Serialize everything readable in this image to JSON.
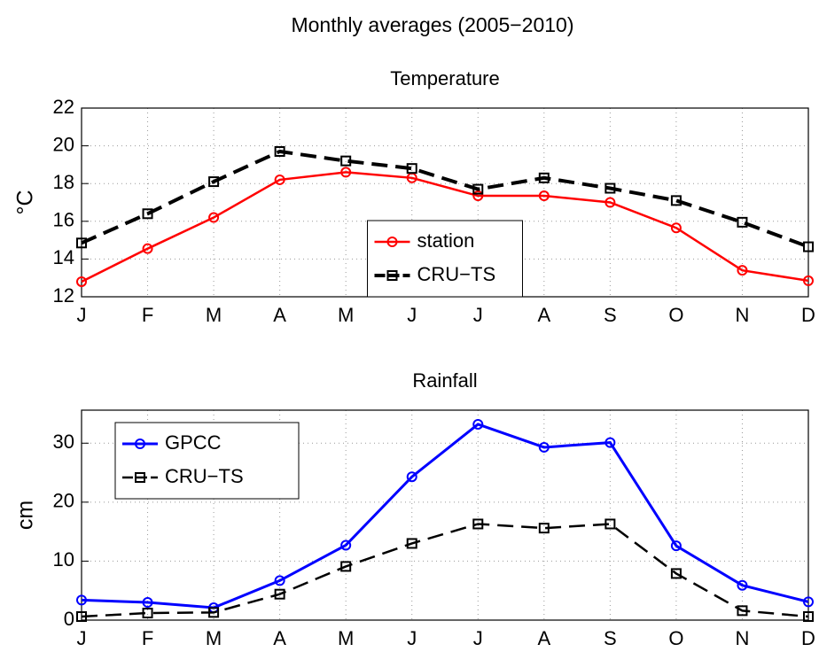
{
  "title": "Monthly averages (2005−2010)",
  "chart_data": [
    {
      "type": "line",
      "title": "Temperature",
      "ylabel": "°C",
      "categories": [
        "J",
        "F",
        "M",
        "A",
        "M",
        "J",
        "J",
        "A",
        "S",
        "O",
        "N",
        "D"
      ],
      "series": [
        {
          "name": "station",
          "color": "#ff0000",
          "marker": "circle",
          "linestyle": "solid",
          "values": [
            12.8,
            14.55,
            16.2,
            18.2,
            18.6,
            18.3,
            17.35,
            17.35,
            17.0,
            15.65,
            13.4,
            12.85
          ]
        },
        {
          "name": "CRU−TS",
          "color": "#000000",
          "marker": "square",
          "linestyle": "dashed",
          "values": [
            14.85,
            16.4,
            18.1,
            19.7,
            19.2,
            18.8,
            17.7,
            18.3,
            17.75,
            17.1,
            15.95,
            14.65
          ]
        }
      ],
      "ylim": [
        12,
        22
      ],
      "yticks": [
        12,
        14,
        16,
        18,
        20,
        22
      ],
      "grid": true,
      "legend": "lower center"
    },
    {
      "type": "line",
      "title": "Rainfall",
      "ylabel": "cm",
      "categories": [
        "J",
        "F",
        "M",
        "A",
        "M",
        "J",
        "J",
        "A",
        "S",
        "O",
        "N",
        "D"
      ],
      "series": [
        {
          "name": "GPCC",
          "color": "#0000ff",
          "marker": "circle",
          "linestyle": "solid",
          "values": [
            3.4,
            3.0,
            2.1,
            6.7,
            12.7,
            24.3,
            33.2,
            29.3,
            30.1,
            12.6,
            5.9,
            3.1
          ]
        },
        {
          "name": "CRU−TS",
          "color": "#000000",
          "marker": "square",
          "linestyle": "dashed",
          "values": [
            0.6,
            1.2,
            1.3,
            4.4,
            9.1,
            13.0,
            16.3,
            15.6,
            16.3,
            7.9,
            1.6,
            0.6
          ]
        }
      ],
      "ylim": [
        0,
        35.6
      ],
      "yticks": [
        0,
        10,
        20,
        30
      ],
      "grid": true,
      "legend": "upper left"
    }
  ]
}
